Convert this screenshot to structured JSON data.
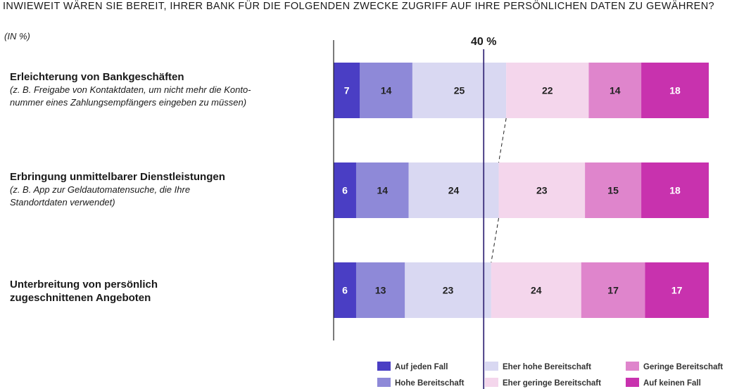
{
  "title": "INWIEWEIT WÄREN SIE BEREIT, IHRER BANK FÜR DIE FOLGENDEN ZWECKE ZUGRIFF AUF IHRE PERSÖNLICHEN DATEN ZU GEWÄHREN?",
  "unit": "(IN %)",
  "chart_data": {
    "type": "bar",
    "orientation": "horizontal",
    "stacked": true,
    "title": "INWIEWEIT WÄREN SIE BEREIT, IHRER BANK FÜR DIE FOLGENDEN ZWECKE ZUGRIFF AUF IHRE PERSÖNLICHEN DATEN ZU GEWÄHREN?",
    "xlim": [
      0,
      100
    ],
    "reference_line": {
      "value": 40,
      "label": "40 %"
    },
    "categories": [
      {
        "label": "Erleichterung von Bankgeschäften",
        "sublabel": "(z. B. Freigabe von Kontaktdaten, um nicht mehr die Konto-\nnummer eines Zahlungsempfängers eingeben zu müssen)"
      },
      {
        "label": "Erbringung unmittelbarer Dienstleistungen",
        "sublabel": "(z. B. App zur Geldautomatensuche, die Ihre\nStandortdaten verwendet)"
      },
      {
        "label": "Unterbreitung von persönlich\nzugeschnittenen Angeboten",
        "sublabel": ""
      }
    ],
    "series": [
      {
        "name": "Auf jeden Fall",
        "color": "#4a3ec4",
        "values": [
          7,
          6,
          6
        ]
      },
      {
        "name": "Hohe Bereitschaft",
        "color": "#8e89d8",
        "values": [
          14,
          14,
          13
        ]
      },
      {
        "name": "Eher hohe Bereitschaft",
        "color": "#d9d8f2",
        "values": [
          25,
          24,
          23
        ]
      },
      {
        "name": "Eher geringe Bereitschaft",
        "color": "#f4d6ec",
        "values": [
          22,
          23,
          24
        ]
      },
      {
        "name": "Geringe Bereitschaft",
        "color": "#df85cc",
        "values": [
          14,
          15,
          17
        ]
      },
      {
        "name": "Auf keinen Fall",
        "color": "#c832ae",
        "values": [
          18,
          18,
          17
        ]
      }
    ],
    "legend": "bottom-right",
    "grid": false
  }
}
